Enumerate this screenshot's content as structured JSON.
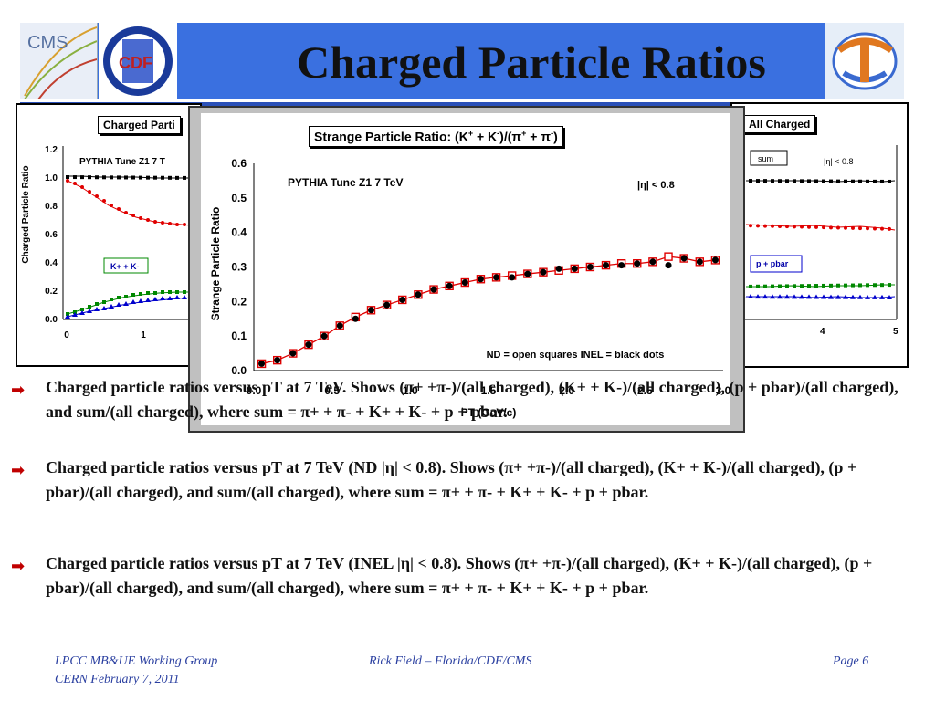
{
  "header": {
    "title": "Charged Particle Ratios",
    "logos": [
      "CMS",
      "CDF",
      "globe-logo"
    ]
  },
  "left_chart": {
    "title": "Charged Parti",
    "ylabel": "Charged Particle Ratio",
    "annotation": "PYTHIA Tune Z1 7 T",
    "legend_label": "K+ + K-",
    "y_ticks": [
      "0.0",
      "0.2",
      "0.4",
      "0.6",
      "0.8",
      "1.0",
      "1.2"
    ],
    "x_ticks": [
      "0",
      "1"
    ]
  },
  "right_chart": {
    "title": "All Charged",
    "label_sum": "sum",
    "label_eta": "|η| < 0.8",
    "label_ppbar": "p + pbar",
    "x_ticks": [
      "4",
      "5"
    ]
  },
  "main_chart": {
    "title_prefix": "Strange Particle Ratio: (K",
    "annotation_tune": "PYTHIA Tune Z1 7 TeV",
    "annotation_eta": "|η| < 0.8",
    "legend_note": "ND = open squares INEL = black dots",
    "xlabel": "PT (GeV/c)",
    "ylabel": "Strange Particle Ratio",
    "x_ticks": [
      "0.0",
      "0.5",
      "1.0",
      "1.5",
      "2.0",
      "2.5",
      "3.0"
    ],
    "y_ticks": [
      "0.0",
      "0.1",
      "0.2",
      "0.3",
      "0.4",
      "0.5",
      "0.6"
    ]
  },
  "chart_data": {
    "type": "scatter",
    "title": "Strange Particle Ratio: (K+ + K-)/(π+ + π-)",
    "xlabel": "PT (GeV/c)",
    "ylabel": "Strange Particle Ratio",
    "xlim": [
      0.0,
      3.0
    ],
    "ylim": [
      0.0,
      0.6
    ],
    "grid": false,
    "series": [
      {
        "name": "ND = open squares",
        "marker": "open-square",
        "x": [
          0.05,
          0.15,
          0.25,
          0.35,
          0.45,
          0.55,
          0.65,
          0.75,
          0.85,
          0.95,
          1.05,
          1.15,
          1.25,
          1.35,
          1.45,
          1.55,
          1.65,
          1.75,
          1.85,
          1.95,
          2.05,
          2.15,
          2.25,
          2.35,
          2.45,
          2.55,
          2.65,
          2.75,
          2.85,
          2.95
        ],
        "values": [
          0.02,
          0.03,
          0.05,
          0.075,
          0.1,
          0.13,
          0.155,
          0.175,
          0.19,
          0.205,
          0.22,
          0.235,
          0.245,
          0.255,
          0.265,
          0.27,
          0.275,
          0.28,
          0.285,
          0.29,
          0.295,
          0.3,
          0.305,
          0.31,
          0.31,
          0.315,
          0.33,
          0.325,
          0.315,
          0.32
        ]
      },
      {
        "name": "INEL = black dots",
        "marker": "filled-circle",
        "x": [
          0.05,
          0.15,
          0.25,
          0.35,
          0.45,
          0.55,
          0.65,
          0.75,
          0.85,
          0.95,
          1.05,
          1.15,
          1.25,
          1.35,
          1.45,
          1.55,
          1.65,
          1.75,
          1.85,
          1.95,
          2.05,
          2.15,
          2.25,
          2.35,
          2.45,
          2.55,
          2.65,
          2.75,
          2.85,
          2.95
        ],
        "values": [
          0.02,
          0.03,
          0.05,
          0.075,
          0.1,
          0.13,
          0.15,
          0.175,
          0.19,
          0.205,
          0.22,
          0.235,
          0.245,
          0.255,
          0.265,
          0.27,
          0.27,
          0.28,
          0.285,
          0.295,
          0.295,
          0.3,
          0.305,
          0.305,
          0.31,
          0.315,
          0.305,
          0.325,
          0.315,
          0.32
        ]
      }
    ]
  },
  "bullets": [
    {
      "text": "Charged particle ratios versus pT at 7 TeV. Shows (π+ +π-)/(all charged), (K+ + K-)/(all charged), (p + pbar)/(all charged), and sum/(all charged), where sum = π+ + π- + K+ + K- + p + pbar."
    },
    {
      "text": "Charged particle ratios versus pT at 7 TeV (ND |η| < 0.8). Shows (π+ +π-)/(all charged), (K+ + K-)/(all charged), (p + pbar)/(all charged), and sum/(all charged), where sum = π+ + π- + K+ + K- + p + pbar."
    },
    {
      "text": "Charged particle ratios versus pT at 7 TeV (INEL |η| < 0.8). Shows (π+ +π-)/(all charged), (K+ + K-)/(all charged), (p + pbar)/(all charged), and sum/(all charged), where sum = π+ + π- + K+ + K- + p + pbar."
    }
  ],
  "footer": {
    "left_line1": "LPCC MB&UE Working Group",
    "left_line2": "CERN February 7, 2011",
    "center": "Rick Field – Florida/CDF/CMS",
    "right": "Page 6"
  },
  "colors": {
    "banner": "#3a70e0",
    "bullet_arrow": "#c00000",
    "fit_line": "#e00000",
    "footer_text": "#2a3fa0"
  }
}
